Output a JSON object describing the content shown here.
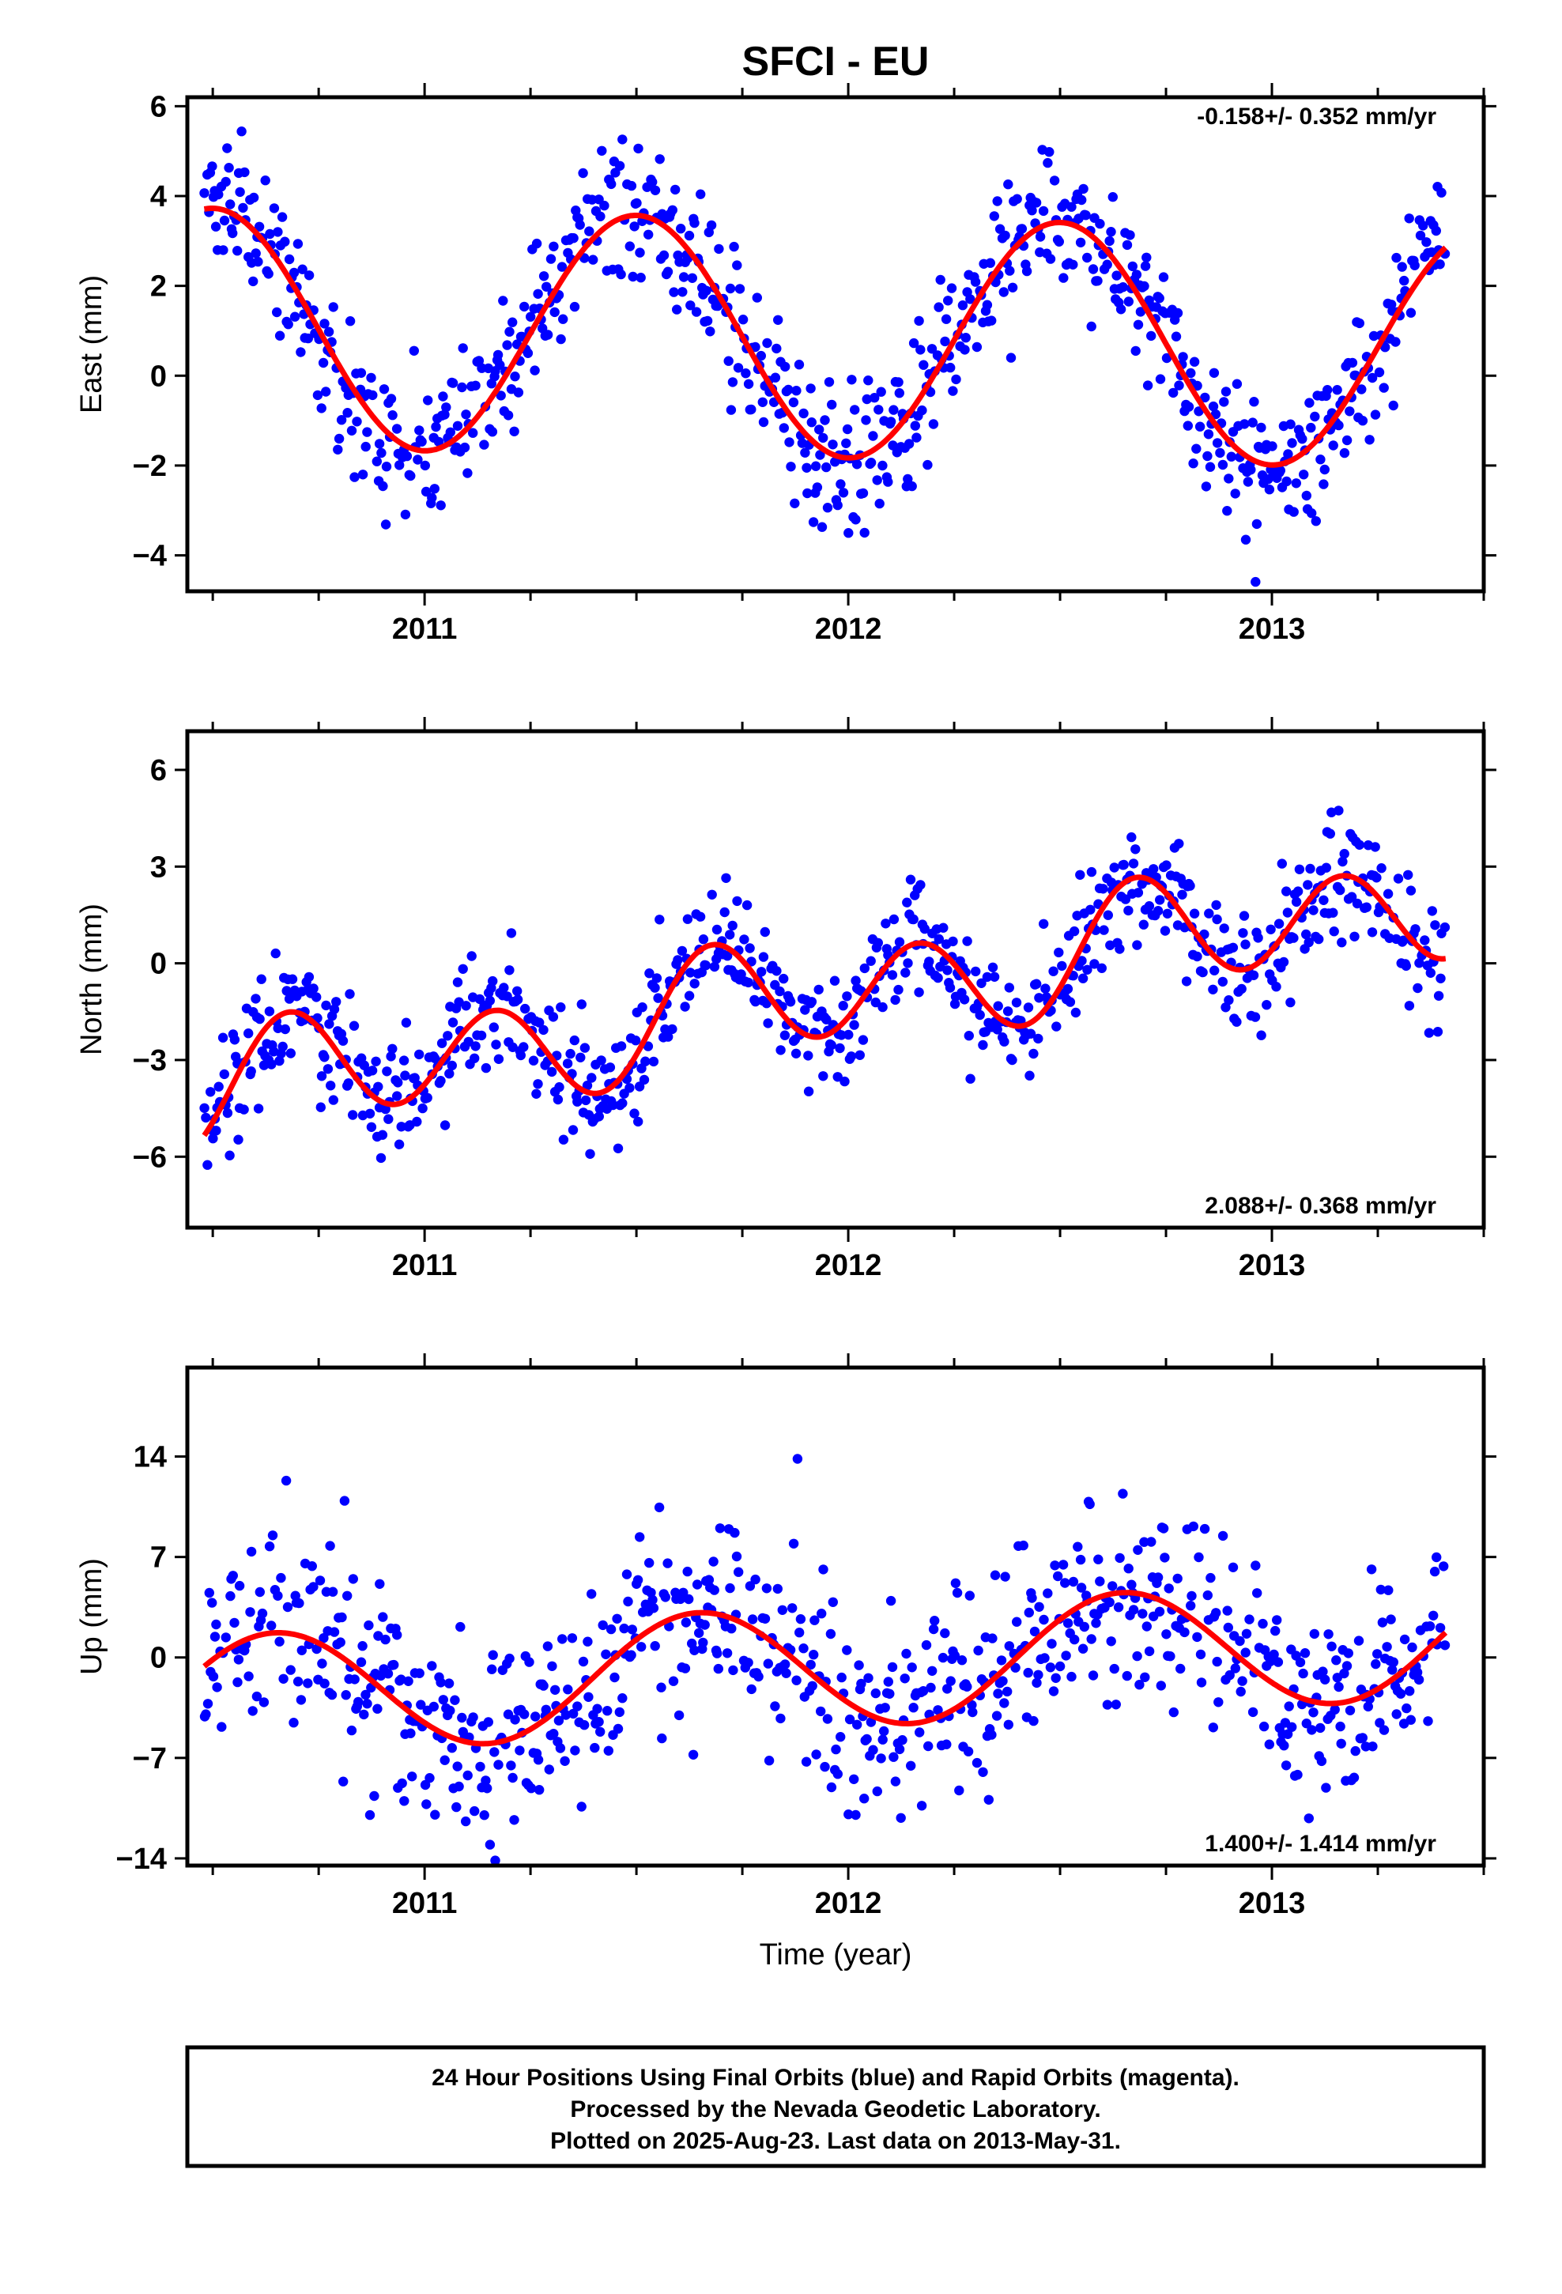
{
  "figure": {
    "title": "SFCI - EU",
    "xlabel": "Time (year)",
    "footer": [
      "24 Hour Positions Using Final Orbits (blue) and Rapid Orbits (magenta).",
      "Processed by the Nevada Geodetic Laboratory.",
      "Plotted on 2025-Aug-23. Last data on 2013-May-31."
    ],
    "colors": {
      "points": "#0000ff",
      "fit": "#ff0000",
      "axis": "#000000"
    }
  },
  "chart_data": [
    {
      "type": "scatter",
      "component": "east",
      "ylabel": "East (mm)",
      "rate_label": "-0.158+/- 0.352 mm/yr",
      "rate_position": "top-right",
      "xlim": [
        2010.44,
        2013.5
      ],
      "ylim": [
        -4.8,
        6.2
      ],
      "xticks": [
        2011,
        2012,
        2013
      ],
      "yticks": [
        -4,
        -2,
        0,
        2,
        4,
        6
      ],
      "fit_model": {
        "type": "linear+annual+semiannual",
        "t0": 2012.0,
        "intercept": 0.83,
        "slope": -0.158,
        "annual_cos": -2.66,
        "annual_sin": 0.0,
        "semiannual_cos": 0.0,
        "semiannual_sin": 0.0
      },
      "points_start": 2010.48,
      "points_end": 2013.41,
      "points_per_year": 300,
      "residual_sd": 0.8
    },
    {
      "type": "scatter",
      "component": "north",
      "ylabel": "North (mm)",
      "rate_label": "2.088+/- 0.368 mm/yr",
      "rate_position": "bottom-right",
      "xlim": [
        2010.44,
        2013.5
      ],
      "ylim": [
        -8.2,
        7.2
      ],
      "xticks": [
        2011,
        2012,
        2013
      ],
      "yticks": [
        -6,
        -3,
        0,
        3,
        6
      ],
      "fit_model": {
        "type": "linear+annual+semiannual",
        "t0": 2012.0,
        "intercept": -0.85,
        "slope": 2.088,
        "annual_cos": 0.06,
        "annual_sin": -0.58,
        "semiannual_cos": -0.88,
        "semiannual_sin": 1.34
      },
      "points_start": 2010.48,
      "points_end": 2013.41,
      "points_per_year": 300,
      "residual_sd": 0.95
    },
    {
      "type": "scatter",
      "component": "up",
      "ylabel": "Up (mm)",
      "rate_label": "1.400+/- 1.414 mm/yr",
      "rate_position": "bottom-right",
      "xlim": [
        2010.44,
        2013.5
      ],
      "ylim": [
        -14.5,
        20.2
      ],
      "xticks": [
        2011,
        2012,
        2013
      ],
      "yticks": [
        -14,
        -7,
        0,
        7,
        14
      ],
      "fit_model": {
        "type": "linear+annual+semiannual",
        "t0": 2012.0,
        "intercept": -0.6,
        "slope": 1.4,
        "annual_cos": -2.55,
        "annual_sin": -3.35,
        "semiannual_cos": 0.0,
        "semiannual_sin": 0.0
      },
      "points_start": 2010.48,
      "points_end": 2013.41,
      "points_per_year": 300,
      "residual_sd": 3.6
    }
  ]
}
